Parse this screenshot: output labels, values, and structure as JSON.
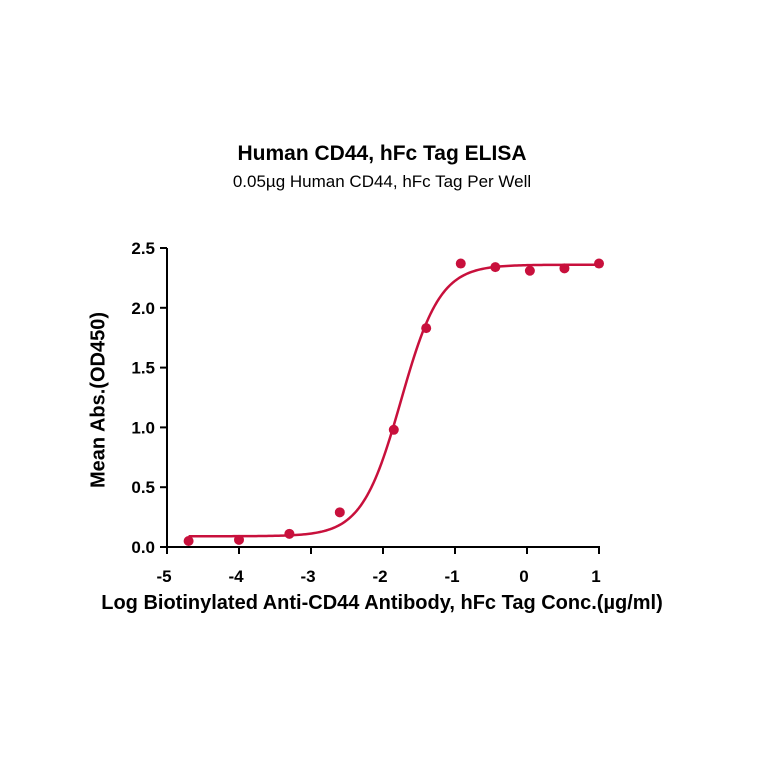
{
  "chart_data": {
    "type": "scatter",
    "title": "Human CD44, hFc Tag ELISA",
    "subtitle": "0.05µg Human CD44, hFc Tag Per Well",
    "xlabel": "Log Biotinylated Anti-CD44 Antibody, hFc Tag Conc.(µg/ml)",
    "ylabel": "Mean Abs.(OD450)",
    "xlim": [
      -5,
      1
    ],
    "ylim": [
      0,
      2.5
    ],
    "x_ticks": [
      "-5",
      "-4",
      "-3",
      "-2",
      "-1",
      "0",
      "1"
    ],
    "y_ticks": [
      "0.0",
      "0.5",
      "1.0",
      "1.5",
      "2.0",
      "2.5"
    ],
    "grid": false,
    "color": "#c8103c",
    "series": [
      {
        "points": [
          {
            "x": -4.7,
            "y": 0.05
          },
          {
            "x": -4.0,
            "y": 0.06
          },
          {
            "x": -3.3,
            "y": 0.11
          },
          {
            "x": -2.6,
            "y": 0.29
          },
          {
            "x": -1.85,
            "y": 0.98
          },
          {
            "x": -1.4,
            "y": 1.83
          },
          {
            "x": -0.92,
            "y": 2.37
          },
          {
            "x": -0.44,
            "y": 2.34
          },
          {
            "x": 0.04,
            "y": 2.31
          },
          {
            "x": 0.52,
            "y": 2.33
          },
          {
            "x": 1.0,
            "y": 2.37
          }
        ],
        "fit": {
          "model": "4PL",
          "bottom": 0.09,
          "top": 2.36,
          "logEC50": -1.75,
          "hill": 1.6
        }
      }
    ]
  }
}
